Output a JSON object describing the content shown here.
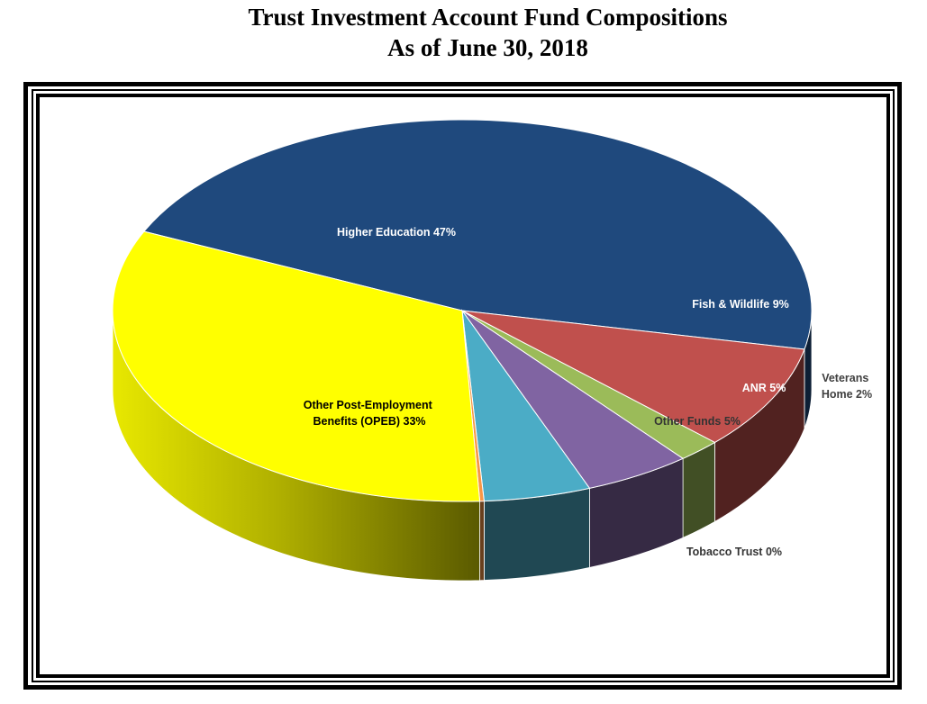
{
  "chart_data": {
    "type": "pie",
    "title": "Trust Investment Account Fund Compositions",
    "subtitle": "As of June 30, 2018",
    "slices": [
      {
        "label": "Higher Education 47%",
        "value": 47,
        "color": "#1f497d"
      },
      {
        "label": "Fish & Wildlife 9%",
        "value": 9,
        "color": "#c0504d"
      },
      {
        "label": "Veterans Home 2%",
        "value": 2,
        "color": "#9bbb59"
      },
      {
        "label": "ANR 5%",
        "value": 5,
        "color": "#8064a2"
      },
      {
        "label": "Other Funds 5%",
        "value": 5,
        "color": "#4bacc6"
      },
      {
        "label": "Tobacco Trust 0%",
        "value": 0.2,
        "color": "#f79646"
      },
      {
        "label": "Other Post-Employment Benefits (OPEB) 33%",
        "value": 33,
        "color": "#ffff00"
      }
    ]
  }
}
